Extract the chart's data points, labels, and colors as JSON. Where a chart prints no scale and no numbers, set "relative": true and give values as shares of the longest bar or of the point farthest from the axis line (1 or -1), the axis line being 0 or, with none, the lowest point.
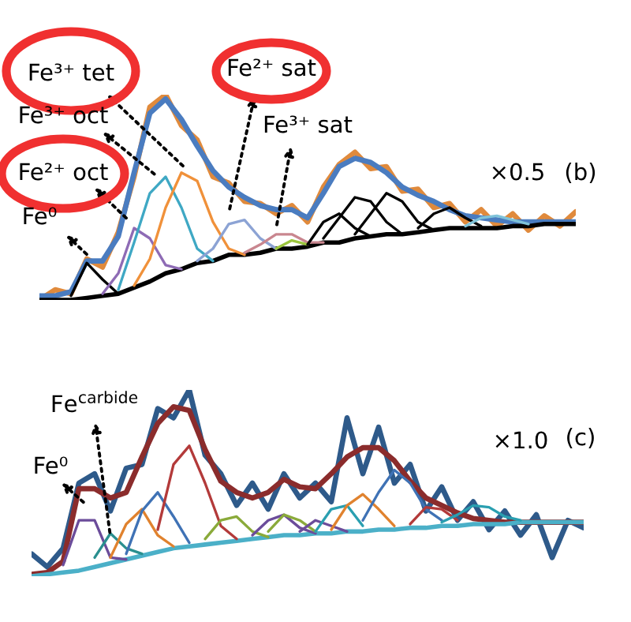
{
  "chart_data": [
    {
      "type": "line",
      "relative": true,
      "categories": [
        null,
        null,
        null,
        null,
        null,
        null,
        null,
        null,
        null,
        null,
        null,
        null,
        null,
        null,
        null,
        null,
        null,
        null,
        null,
        null,
        null,
        null,
        null,
        null,
        null,
        null,
        null,
        null,
        null,
        null,
        null,
        null,
        null,
        null,
        null
      ],
      "annotations": [
        "Fe³⁺ tet",
        "Fe³⁺ oct",
        "Fe²⁺ oct",
        "Fe⁰",
        "Fe²⁺ sat",
        "Fe³⁺ sat",
        "×0.5",
        "(b)"
      ],
      "series": [
        {
          "color": "#e08a3c",
          "values": [
            0.0,
            0.05,
            0.03,
            0.2,
            0.16,
            0.33,
            0.6,
            0.94,
            1.0,
            0.85,
            0.78,
            0.6,
            0.57,
            0.48,
            0.47,
            0.42,
            0.46,
            0.38,
            0.55,
            0.66,
            0.72,
            0.64,
            0.65,
            0.53,
            0.54,
            0.45,
            0.47,
            0.38,
            0.44,
            0.36,
            0.42,
            0.34,
            0.41,
            0.36,
            0.43
          ]
        },
        {
          "color": "#4a7cc0",
          "values": [
            0.02,
            0.02,
            0.04,
            0.19,
            0.19,
            0.31,
            0.62,
            0.91,
            0.98,
            0.88,
            0.75,
            0.63,
            0.55,
            0.5,
            0.46,
            0.44,
            0.44,
            0.4,
            0.52,
            0.65,
            0.69,
            0.67,
            0.62,
            0.55,
            0.51,
            0.48,
            0.44,
            0.41,
            0.4,
            0.39,
            0.38,
            0.38,
            0.38,
            0.38,
            0.38
          ]
        },
        {
          "color": "#000000",
          "values": [
            0,
            0,
            0,
            0.01,
            0.02,
            0.03,
            0.06,
            0.09,
            0.13,
            0.15,
            0.18,
            0.19,
            0.22,
            0.22,
            0.23,
            0.25,
            0.25,
            0.26,
            0.28,
            0.28,
            0.3,
            0.31,
            0.32,
            0.32,
            0.33,
            0.34,
            0.35,
            0.35,
            0.35,
            0.35,
            0.36,
            0.36,
            0.37,
            0.37,
            0.37
          ]
        },
        {
          "color": "#000000",
          "values": [
            null,
            null,
            0.02,
            0.18,
            0.1,
            0.03,
            null,
            null,
            null,
            null,
            null,
            null,
            null,
            null,
            null,
            null,
            null,
            null,
            null,
            null,
            null,
            null,
            null,
            null,
            null,
            null,
            null,
            null,
            null,
            null,
            null,
            null,
            null,
            null,
            null
          ]
        },
        {
          "color": "#8e6bb5",
          "values": [
            null,
            null,
            null,
            null,
            0.03,
            0.13,
            0.35,
            0.3,
            0.17,
            0.15,
            null,
            null,
            null,
            null,
            null,
            null,
            null,
            null,
            null,
            null,
            null,
            null,
            null,
            null,
            null,
            null,
            null,
            null,
            null,
            null,
            null,
            null,
            null,
            null,
            null
          ]
        },
        {
          "color": "#3fa8c4",
          "values": [
            null,
            null,
            null,
            null,
            null,
            0.05,
            0.28,
            0.52,
            0.6,
            0.45,
            0.25,
            0.19,
            null,
            null,
            null,
            null,
            null,
            null,
            null,
            null,
            null,
            null,
            null,
            null,
            null,
            null,
            null,
            null,
            null,
            null,
            null,
            null,
            null,
            null,
            null
          ]
        },
        {
          "color": "#f0913a",
          "values": [
            null,
            null,
            null,
            null,
            null,
            null,
            0.07,
            0.2,
            0.45,
            0.62,
            0.58,
            0.38,
            0.25,
            0.22,
            null,
            null,
            null,
            null,
            null,
            null,
            null,
            null,
            null,
            null,
            null,
            null,
            null,
            null,
            null,
            null,
            null,
            null,
            null,
            null,
            null
          ]
        },
        {
          "color": "#8ca3d4",
          "values": [
            null,
            null,
            null,
            null,
            null,
            null,
            null,
            null,
            null,
            null,
            0.19,
            0.25,
            0.37,
            0.39,
            0.3,
            0.25,
            null,
            null,
            null,
            null,
            null,
            null,
            null,
            null,
            null,
            null,
            null,
            null,
            null,
            null,
            null,
            null,
            null,
            null,
            null
          ]
        },
        {
          "color": "#c9868f",
          "values": [
            null,
            null,
            null,
            null,
            null,
            null,
            null,
            null,
            null,
            null,
            null,
            null,
            null,
            0.23,
            0.27,
            0.32,
            0.32,
            0.28,
            0.28,
            null,
            null,
            null,
            null,
            null,
            null,
            null,
            null,
            null,
            null,
            null,
            null,
            null,
            null,
            null,
            null
          ]
        },
        {
          "color": "#9bc53d",
          "values": [
            null,
            null,
            null,
            null,
            null,
            null,
            null,
            null,
            null,
            null,
            null,
            null,
            null,
            null,
            null,
            0.25,
            0.29,
            0.27,
            null,
            null,
            null,
            null,
            null,
            null,
            null,
            null,
            null,
            null,
            null,
            null,
            null,
            null,
            null,
            null,
            null
          ]
        },
        {
          "color": "#000000",
          "values": [
            null,
            null,
            null,
            null,
            null,
            null,
            null,
            null,
            null,
            null,
            null,
            null,
            null,
            null,
            null,
            null,
            null,
            0.27,
            0.38,
            0.42,
            0.35,
            0.31,
            null,
            null,
            null,
            null,
            null,
            null,
            null,
            null,
            null,
            null,
            null,
            null,
            null
          ]
        },
        {
          "color": "#000000",
          "values": [
            null,
            null,
            null,
            null,
            null,
            null,
            null,
            null,
            null,
            null,
            null,
            null,
            null,
            null,
            null,
            null,
            null,
            null,
            0.3,
            0.4,
            0.5,
            0.48,
            0.38,
            0.32,
            null,
            null,
            null,
            null,
            null,
            null,
            null,
            null,
            null,
            null,
            null
          ]
        },
        {
          "color": "#000000",
          "values": [
            null,
            null,
            null,
            null,
            null,
            null,
            null,
            null,
            null,
            null,
            null,
            null,
            null,
            null,
            null,
            null,
            null,
            null,
            null,
            null,
            0.32,
            0.42,
            0.52,
            0.48,
            0.38,
            0.34,
            null,
            null,
            null,
            null,
            null,
            null,
            null,
            null,
            null
          ]
        },
        {
          "color": "#000000",
          "values": [
            null,
            null,
            null,
            null,
            null,
            null,
            null,
            null,
            null,
            null,
            null,
            null,
            null,
            null,
            null,
            null,
            null,
            null,
            null,
            null,
            null,
            null,
            null,
            null,
            0.35,
            0.42,
            0.45,
            0.4,
            0.36,
            null,
            null,
            null,
            null,
            null,
            null
          ]
        },
        {
          "color": "#7fc3d9",
          "values": [
            null,
            null,
            null,
            null,
            null,
            null,
            null,
            null,
            null,
            null,
            null,
            null,
            null,
            null,
            null,
            null,
            null,
            null,
            null,
            null,
            null,
            null,
            null,
            null,
            null,
            null,
            null,
            0.36,
            0.4,
            0.41,
            0.39,
            0.37,
            null,
            null,
            null
          ]
        }
      ]
    },
    {
      "type": "line",
      "relative": true,
      "categories": [
        null,
        null,
        null,
        null,
        null,
        null,
        null,
        null,
        null,
        null,
        null,
        null,
        null,
        null,
        null,
        null,
        null,
        null,
        null,
        null,
        null,
        null,
        null,
        null,
        null,
        null,
        null,
        null,
        null,
        null,
        null,
        null,
        null,
        null,
        null,
        null
      ],
      "annotations": [
        "Fe$^{carbide}$",
        "Fe⁰",
        "×1.0",
        "(c)"
      ],
      "series": [
        {
          "color": "#2e5a8a",
          "values": [
            0.12,
            0.05,
            0.15,
            0.5,
            0.55,
            0.35,
            0.58,
            0.6,
            0.9,
            0.85,
            1.0,
            0.65,
            0.55,
            0.38,
            0.5,
            0.36,
            0.55,
            0.42,
            0.5,
            0.4,
            0.85,
            0.55,
            0.8,
            0.5,
            0.6,
            0.35,
            0.48,
            0.3,
            0.4,
            0.25,
            0.35,
            0.22,
            0.33,
            0.1,
            0.3,
            0.26
          ]
        },
        {
          "color": "#8b2c2c",
          "values": [
            0.01,
            0.02,
            0.08,
            0.47,
            0.47,
            0.42,
            0.45,
            0.64,
            0.82,
            0.91,
            0.89,
            0.68,
            0.51,
            0.45,
            0.42,
            0.45,
            0.52,
            0.48,
            0.47,
            0.55,
            0.64,
            0.69,
            0.69,
            0.62,
            0.51,
            0.42,
            0.38,
            0.34,
            0.31,
            0.3,
            0.29,
            0.29,
            0.29,
            0.29,
            0.29,
            0.29
          ]
        },
        {
          "color": "#4bb0c8",
          "values": [
            0,
            0.01,
            0.02,
            0.03,
            0.05,
            0.07,
            0.09,
            0.11,
            0.13,
            0.15,
            0.16,
            0.17,
            0.18,
            0.19,
            0.2,
            0.21,
            0.22,
            0.22,
            0.23,
            0.23,
            0.24,
            0.24,
            0.25,
            0.25,
            0.26,
            0.26,
            0.27,
            0.27,
            0.28,
            0.28,
            0.28,
            0.29,
            0.29,
            0.29,
            0.29,
            0.29
          ]
        },
        {
          "color": "#6b4c9a",
          "values": [
            null,
            null,
            0.06,
            0.3,
            0.3,
            0.1,
            0.09,
            null,
            null,
            null,
            null,
            null,
            null,
            null,
            null,
            null,
            null,
            null,
            null,
            null,
            null,
            null,
            null,
            null,
            null,
            null,
            null,
            null,
            null,
            null,
            null,
            null,
            null,
            null,
            null,
            null
          ]
        },
        {
          "color": "#2a8f8f",
          "values": [
            null,
            null,
            null,
            null,
            0.1,
            0.23,
            0.15,
            0.12,
            null,
            null,
            null,
            null,
            null,
            null,
            null,
            null,
            null,
            null,
            null,
            null,
            null,
            null,
            null,
            null,
            null,
            null,
            null,
            null,
            null,
            null,
            null,
            null,
            null,
            null,
            null,
            null
          ]
        },
        {
          "color": "#e0822e",
          "values": [
            null,
            null,
            null,
            null,
            null,
            0.1,
            0.28,
            0.36,
            0.22,
            0.16,
            null,
            null,
            null,
            null,
            null,
            null,
            null,
            null,
            null,
            null,
            null,
            null,
            null,
            null,
            null,
            null,
            null,
            null,
            null,
            null,
            null,
            null,
            null,
            null,
            null,
            null
          ]
        },
        {
          "color": "#3f72b5",
          "values": [
            null,
            null,
            null,
            null,
            null,
            null,
            0.12,
            0.35,
            0.45,
            0.32,
            0.18,
            null,
            null,
            null,
            null,
            null,
            null,
            null,
            null,
            null,
            null,
            null,
            null,
            null,
            null,
            null,
            null,
            null,
            null,
            null,
            null,
            null,
            null,
            null,
            null,
            null
          ]
        },
        {
          "color": "#b33a3a",
          "values": [
            null,
            null,
            null,
            null,
            null,
            null,
            null,
            null,
            0.25,
            0.6,
            0.7,
            0.5,
            0.27,
            0.2,
            null,
            null,
            null,
            null,
            null,
            null,
            null,
            null,
            null,
            null,
            null,
            null,
            null,
            null,
            null,
            null,
            null,
            null,
            null,
            null,
            null,
            null
          ]
        },
        {
          "color": "#8aaa3a",
          "values": [
            null,
            null,
            null,
            null,
            null,
            null,
            null,
            null,
            null,
            null,
            null,
            0.2,
            0.3,
            0.32,
            0.24,
            0.21,
            null,
            null,
            null,
            null,
            null,
            null,
            null,
            null,
            null,
            null,
            null,
            null,
            null,
            null,
            null,
            null,
            null,
            null,
            null,
            null
          ]
        },
        {
          "color": "#6b4c9a",
          "values": [
            null,
            null,
            null,
            null,
            null,
            null,
            null,
            null,
            null,
            null,
            null,
            null,
            null,
            null,
            0.22,
            0.3,
            0.33,
            0.26,
            0.23,
            null,
            null,
            null,
            null,
            null,
            null,
            null,
            null,
            null,
            null,
            null,
            null,
            null,
            null,
            null,
            null,
            null
          ]
        },
        {
          "color": "#8aaa3a",
          "values": [
            null,
            null,
            null,
            null,
            null,
            null,
            null,
            null,
            null,
            null,
            null,
            null,
            null,
            null,
            null,
            0.24,
            0.33,
            0.3,
            0.24,
            null,
            null,
            null,
            null,
            null,
            null,
            null,
            null,
            null,
            null,
            null,
            null,
            null,
            null,
            null,
            null,
            null
          ]
        },
        {
          "color": "#6b4c9a",
          "values": [
            null,
            null,
            null,
            null,
            null,
            null,
            null,
            null,
            null,
            null,
            null,
            null,
            null,
            null,
            null,
            null,
            null,
            0.24,
            0.3,
            0.27,
            0.24,
            null,
            null,
            null,
            null,
            null,
            null,
            null,
            null,
            null,
            null,
            null,
            null,
            null,
            null,
            null
          ]
        },
        {
          "color": "#2a9fb0",
          "values": [
            null,
            null,
            null,
            null,
            null,
            null,
            null,
            null,
            null,
            null,
            null,
            null,
            null,
            null,
            null,
            null,
            null,
            null,
            0.24,
            0.36,
            0.38,
            0.27,
            null,
            null,
            null,
            null,
            null,
            null,
            null,
            null,
            null,
            null,
            null,
            null,
            null,
            null
          ]
        },
        {
          "color": "#e0822e",
          "values": [
            null,
            null,
            null,
            null,
            null,
            null,
            null,
            null,
            null,
            null,
            null,
            null,
            null,
            null,
            null,
            null,
            null,
            null,
            null,
            0.25,
            0.38,
            0.44,
            0.36,
            0.27,
            null,
            null,
            null,
            null,
            null,
            null,
            null,
            null,
            null,
            null,
            null,
            null
          ]
        },
        {
          "color": "#3f72b5",
          "values": [
            null,
            null,
            null,
            null,
            null,
            null,
            null,
            null,
            null,
            null,
            null,
            null,
            null,
            null,
            null,
            null,
            null,
            null,
            null,
            null,
            null,
            0.3,
            0.45,
            0.57,
            0.5,
            0.36,
            0.3,
            null,
            null,
            null,
            null,
            null,
            null,
            null,
            null,
            null
          ]
        },
        {
          "color": "#b33a3a",
          "values": [
            null,
            null,
            null,
            null,
            null,
            null,
            null,
            null,
            null,
            null,
            null,
            null,
            null,
            null,
            null,
            null,
            null,
            null,
            null,
            null,
            null,
            null,
            null,
            null,
            0.28,
            0.37,
            0.36,
            0.3,
            null,
            null,
            null,
            null,
            null,
            null,
            null,
            null
          ]
        },
        {
          "color": "#2a9fb0",
          "values": [
            null,
            null,
            null,
            null,
            null,
            null,
            null,
            null,
            null,
            null,
            null,
            null,
            null,
            null,
            null,
            null,
            null,
            null,
            null,
            null,
            null,
            null,
            null,
            null,
            null,
            null,
            0.29,
            0.33,
            0.38,
            0.37,
            0.32,
            0.3,
            null,
            null,
            null,
            null
          ]
        }
      ]
    }
  ]
}
